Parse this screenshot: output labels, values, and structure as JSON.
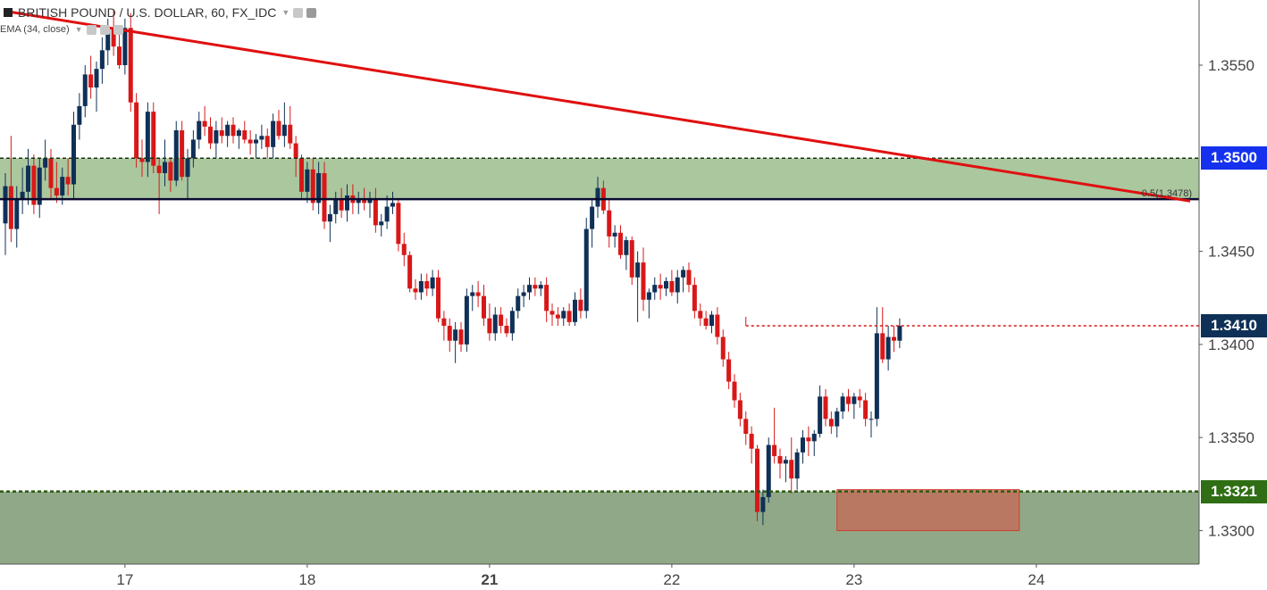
{
  "header": {
    "symbol_title": "BRITISH POUND / U.S. DOLLAR, 60, FX_IDC",
    "indicator_label": "EMA (34, close)"
  },
  "colors": {
    "bull": "#0f3057",
    "bear": "#d81818",
    "zone_upper": "#aac79e",
    "zone_lower": "#90a887",
    "trendline": "#e01010",
    "box": "#c0705c",
    "badge_navy": "#0f3057",
    "badge_blue": "#1531ee",
    "badge_green": "#2f6e14"
  },
  "chart_data": {
    "type": "candlestick",
    "title": "BRITISH POUND / U.S. DOLLAR, 60, FX_IDC",
    "y_range": [
      1.3282,
      1.3585
    ],
    "y_ticks": [
      "1.3550",
      "1.3450",
      "1.3400",
      "1.3350",
      "1.3300"
    ],
    "x_ticks": [
      {
        "label": "17",
        "bold": false,
        "index": 21
      },
      {
        "label": "18",
        "bold": false,
        "index": 53
      },
      {
        "label": "21",
        "bold": true,
        "index": 85
      },
      {
        "label": "22",
        "bold": false,
        "index": 117
      },
      {
        "label": "23",
        "bold": false,
        "index": 149
      },
      {
        "label": "24",
        "bold": false,
        "index": 181
      }
    ],
    "fib_label": "0.5(1.3478)",
    "levels": {
      "resistance_zone": [
        1.3478,
        1.35
      ],
      "support_zone_top": 1.3321,
      "dotted_level": 1.341,
      "dotted_level_start_index": 130
    },
    "trendline": {
      "start_index": 0,
      "start_price": 1.3579,
      "end_index": 208,
      "end_price": 1.3477
    },
    "highlight_box": {
      "start_index": 146,
      "end_index": 178,
      "low": 1.33,
      "high": 1.3322
    },
    "price_badges": [
      {
        "label": "1.3500",
        "price": 1.35,
        "color": "#1531ee"
      },
      {
        "label": "1.3410",
        "price": 1.341,
        "color": "#0f3057"
      },
      {
        "label": "1.3321",
        "price": 1.3321,
        "color": "#2f6e14"
      }
    ],
    "candles": [
      [
        1.3465,
        1.3492,
        1.3448,
        1.3485
      ],
      [
        1.3485,
        1.3512,
        1.3455,
        1.3462
      ],
      [
        1.3462,
        1.3485,
        1.3452,
        1.3478
      ],
      [
        1.3478,
        1.3495,
        1.347,
        1.3482
      ],
      [
        1.3482,
        1.3505,
        1.3475,
        1.3496
      ],
      [
        1.3496,
        1.3502,
        1.347,
        1.3475
      ],
      [
        1.3475,
        1.35,
        1.3468,
        1.3495
      ],
      [
        1.3495,
        1.351,
        1.3488,
        1.35
      ],
      [
        1.35,
        1.3505,
        1.3478,
        1.3484
      ],
      [
        1.3484,
        1.3498,
        1.3476,
        1.348
      ],
      [
        1.348,
        1.3495,
        1.3475,
        1.349
      ],
      [
        1.349,
        1.35,
        1.348,
        1.3486
      ],
      [
        1.3486,
        1.3525,
        1.3478,
        1.3518
      ],
      [
        1.3518,
        1.3535,
        1.351,
        1.3528
      ],
      [
        1.3528,
        1.355,
        1.3522,
        1.3545
      ],
      [
        1.3545,
        1.3555,
        1.3532,
        1.3538
      ],
      [
        1.3538,
        1.3552,
        1.3525,
        1.3548
      ],
      [
        1.3548,
        1.3565,
        1.354,
        1.3558
      ],
      [
        1.3558,
        1.3575,
        1.355,
        1.357
      ],
      [
        1.357,
        1.358,
        1.3555,
        1.356
      ],
      [
        1.356,
        1.357,
        1.3548,
        1.355
      ],
      [
        1.355,
        1.3575,
        1.3545,
        1.357
      ],
      [
        1.357,
        1.3578,
        1.3525,
        1.353
      ],
      [
        1.353,
        1.3535,
        1.3495,
        1.35
      ],
      [
        1.35,
        1.351,
        1.349,
        1.3498
      ],
      [
        1.3498,
        1.353,
        1.349,
        1.3525
      ],
      [
        1.3525,
        1.353,
        1.3492,
        1.3496
      ],
      [
        1.3496,
        1.35,
        1.347,
        1.3492
      ],
      [
        1.3492,
        1.351,
        1.3485,
        1.3498
      ],
      [
        1.3498,
        1.35,
        1.3482,
        1.3488
      ],
      [
        1.3488,
        1.352,
        1.3485,
        1.3515
      ],
      [
        1.3515,
        1.352,
        1.3488,
        1.349
      ],
      [
        1.349,
        1.3505,
        1.3478,
        1.35
      ],
      [
        1.35,
        1.3515,
        1.3495,
        1.351
      ],
      [
        1.351,
        1.3525,
        1.3505,
        1.352
      ],
      [
        1.352,
        1.3528,
        1.3512,
        1.3517
      ],
      [
        1.3517,
        1.3522,
        1.3505,
        1.3508
      ],
      [
        1.3508,
        1.352,
        1.35,
        1.3515
      ],
      [
        1.3515,
        1.3522,
        1.3508,
        1.3512
      ],
      [
        1.3512,
        1.352,
        1.3506,
        1.3518
      ],
      [
        1.3518,
        1.3522,
        1.3508,
        1.3512
      ],
      [
        1.3512,
        1.3516,
        1.3505,
        1.3515
      ],
      [
        1.3515,
        1.352,
        1.3508,
        1.351
      ],
      [
        1.351,
        1.3515,
        1.3502,
        1.3508
      ],
      [
        1.3508,
        1.3513,
        1.35,
        1.351
      ],
      [
        1.351,
        1.3518,
        1.3505,
        1.3512
      ],
      [
        1.3512,
        1.3516,
        1.35,
        1.3506
      ],
      [
        1.3506,
        1.3524,
        1.35,
        1.352
      ],
      [
        1.352,
        1.3526,
        1.351,
        1.3512
      ],
      [
        1.3512,
        1.353,
        1.3506,
        1.3518
      ],
      [
        1.3518,
        1.3528,
        1.3505,
        1.3508
      ],
      [
        1.3508,
        1.3512,
        1.349,
        1.35
      ],
      [
        1.35,
        1.3502,
        1.3478,
        1.3482
      ],
      [
        1.3482,
        1.3498,
        1.3476,
        1.3494
      ],
      [
        1.3494,
        1.35,
        1.3472,
        1.3476
      ],
      [
        1.3476,
        1.3498,
        1.347,
        1.3492
      ],
      [
        1.3492,
        1.3498,
        1.3462,
        1.3466
      ],
      [
        1.3466,
        1.3475,
        1.3455,
        1.347
      ],
      [
        1.347,
        1.3482,
        1.3465,
        1.3478
      ],
      [
        1.3478,
        1.3484,
        1.3468,
        1.3472
      ],
      [
        1.3472,
        1.3486,
        1.3466,
        1.348
      ],
      [
        1.348,
        1.3486,
        1.347,
        1.3476
      ],
      [
        1.3476,
        1.3482,
        1.347,
        1.3478
      ],
      [
        1.3478,
        1.3484,
        1.3472,
        1.3476
      ],
      [
        1.3476,
        1.3482,
        1.3468,
        1.3478
      ],
      [
        1.3478,
        1.3484,
        1.346,
        1.3464
      ],
      [
        1.3464,
        1.347,
        1.3458,
        1.3466
      ],
      [
        1.3466,
        1.348,
        1.3462,
        1.3474
      ],
      [
        1.3474,
        1.3482,
        1.347,
        1.3476
      ],
      [
        1.3476,
        1.3478,
        1.345,
        1.3454
      ],
      [
        1.3454,
        1.346,
        1.3442,
        1.3448
      ],
      [
        1.3448,
        1.345,
        1.3428,
        1.343
      ],
      [
        1.343,
        1.3435,
        1.3424,
        1.3428
      ],
      [
        1.3428,
        1.3438,
        1.3424,
        1.3434
      ],
      [
        1.3434,
        1.3438,
        1.3426,
        1.343
      ],
      [
        1.343,
        1.344,
        1.3426,
        1.3436
      ],
      [
        1.3436,
        1.344,
        1.3412,
        1.3414
      ],
      [
        1.3414,
        1.3418,
        1.3402,
        1.341
      ],
      [
        1.341,
        1.3414,
        1.3396,
        1.3402
      ],
      [
        1.3402,
        1.3412,
        1.339,
        1.3408
      ],
      [
        1.3408,
        1.3412,
        1.3396,
        1.34
      ],
      [
        1.34,
        1.343,
        1.3396,
        1.3426
      ],
      [
        1.3426,
        1.3432,
        1.3418,
        1.3428
      ],
      [
        1.3428,
        1.3434,
        1.342,
        1.3426
      ],
      [
        1.3426,
        1.3432,
        1.341,
        1.3414
      ],
      [
        1.3414,
        1.3422,
        1.3402,
        1.3406
      ],
      [
        1.3406,
        1.342,
        1.3402,
        1.3416
      ],
      [
        1.3416,
        1.342,
        1.3406,
        1.341
      ],
      [
        1.341,
        1.3414,
        1.3404,
        1.3406
      ],
      [
        1.3406,
        1.342,
        1.3402,
        1.3418
      ],
      [
        1.3418,
        1.343,
        1.3414,
        1.3426
      ],
      [
        1.3426,
        1.3432,
        1.342,
        1.3428
      ],
      [
        1.3428,
        1.3436,
        1.3424,
        1.3432
      ],
      [
        1.3432,
        1.3436,
        1.3426,
        1.343
      ],
      [
        1.343,
        1.3434,
        1.3426,
        1.3432
      ],
      [
        1.3432,
        1.3436,
        1.3412,
        1.3418
      ],
      [
        1.3418,
        1.3422,
        1.341,
        1.3416
      ],
      [
        1.3416,
        1.342,
        1.341,
        1.3414
      ],
      [
        1.3414,
        1.342,
        1.341,
        1.3418
      ],
      [
        1.3418,
        1.3422,
        1.341,
        1.3412
      ],
      [
        1.3412,
        1.3428,
        1.341,
        1.3424
      ],
      [
        1.3424,
        1.343,
        1.3414,
        1.3418
      ],
      [
        1.3418,
        1.3468,
        1.3414,
        1.3462
      ],
      [
        1.3462,
        1.3478,
        1.3452,
        1.3474
      ],
      [
        1.3474,
        1.349,
        1.3468,
        1.3484
      ],
      [
        1.3484,
        1.3488,
        1.347,
        1.3472
      ],
      [
        1.3472,
        1.3478,
        1.3452,
        1.3458
      ],
      [
        1.3458,
        1.3464,
        1.3452,
        1.346
      ],
      [
        1.346,
        1.3464,
        1.3446,
        1.3448
      ],
      [
        1.3448,
        1.3458,
        1.344,
        1.3456
      ],
      [
        1.3456,
        1.3458,
        1.3432,
        1.3436
      ],
      [
        1.3436,
        1.345,
        1.3412,
        1.3444
      ],
      [
        1.3444,
        1.3452,
        1.3418,
        1.3424
      ],
      [
        1.3424,
        1.343,
        1.3414,
        1.3428
      ],
      [
        1.3428,
        1.3436,
        1.3424,
        1.3432
      ],
      [
        1.3432,
        1.3438,
        1.3424,
        1.343
      ],
      [
        1.343,
        1.3436,
        1.3426,
        1.3434
      ],
      [
        1.3434,
        1.344,
        1.3426,
        1.3428
      ],
      [
        1.3428,
        1.344,
        1.3422,
        1.3436
      ],
      [
        1.3436,
        1.3442,
        1.3428,
        1.344
      ],
      [
        1.344,
        1.3444,
        1.3428,
        1.3432
      ],
      [
        1.3432,
        1.3436,
        1.3414,
        1.3418
      ],
      [
        1.3418,
        1.3422,
        1.341,
        1.3414
      ],
      [
        1.3414,
        1.3418,
        1.3408,
        1.341
      ],
      [
        1.341,
        1.3418,
        1.3406,
        1.3416
      ],
      [
        1.3416,
        1.342,
        1.34,
        1.3404
      ],
      [
        1.3404,
        1.3408,
        1.3388,
        1.3392
      ],
      [
        1.3392,
        1.3396,
        1.3376,
        1.338
      ],
      [
        1.338,
        1.3384,
        1.3366,
        1.337
      ],
      [
        1.337,
        1.3374,
        1.3356,
        1.336
      ],
      [
        1.336,
        1.3364,
        1.3346,
        1.3352
      ],
      [
        1.3352,
        1.3356,
        1.3336,
        1.3344
      ],
      [
        1.3344,
        1.3346,
        1.3305,
        1.331
      ],
      [
        1.331,
        1.3322,
        1.3303,
        1.3318
      ],
      [
        1.3318,
        1.335,
        1.3315,
        1.3346
      ],
      [
        1.3346,
        1.3366,
        1.3336,
        1.334
      ],
      [
        1.334,
        1.3344,
        1.3328,
        1.3336
      ],
      [
        1.3336,
        1.334,
        1.3326,
        1.3338
      ],
      [
        1.3338,
        1.335,
        1.332,
        1.3328
      ],
      [
        1.3328,
        1.3344,
        1.3322,
        1.3342
      ],
      [
        1.3342,
        1.3354,
        1.3336,
        1.335
      ],
      [
        1.335,
        1.3356,
        1.334,
        1.3348
      ],
      [
        1.3348,
        1.3354,
        1.334,
        1.3352
      ],
      [
        1.3352,
        1.3378,
        1.335,
        1.3372
      ],
      [
        1.3372,
        1.3376,
        1.3356,
        1.336
      ],
      [
        1.336,
        1.3364,
        1.3352,
        1.3356
      ],
      [
        1.3356,
        1.3366,
        1.335,
        1.3364
      ],
      [
        1.3364,
        1.3374,
        1.336,
        1.3372
      ],
      [
        1.3372,
        1.3376,
        1.3364,
        1.3368
      ],
      [
        1.3368,
        1.3374,
        1.336,
        1.3372
      ],
      [
        1.3372,
        1.3376,
        1.3366,
        1.337
      ],
      [
        1.337,
        1.3374,
        1.3356,
        1.336
      ],
      [
        1.336,
        1.3364,
        1.335,
        1.336
      ],
      [
        1.336,
        1.342,
        1.3356,
        1.3406
      ],
      [
        1.3406,
        1.342,
        1.339,
        1.3392
      ],
      [
        1.3392,
        1.341,
        1.3386,
        1.3404
      ],
      [
        1.3404,
        1.341,
        1.3396,
        1.3402
      ],
      [
        1.3402,
        1.3414,
        1.3398,
        1.341
      ]
    ]
  }
}
